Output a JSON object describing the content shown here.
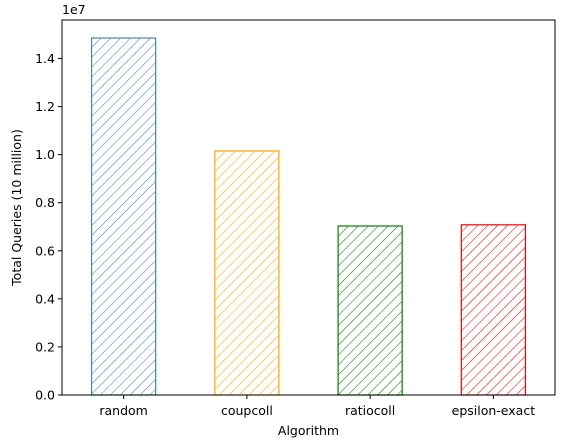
{
  "chart_data": {
    "type": "bar",
    "title": "",
    "xlabel": "Algorithm",
    "ylabel": "Total Queries (10 million)",
    "offset_label": "1e7",
    "categories": [
      "random",
      "coupcoll",
      "ratiocoll",
      "epsilon-exact"
    ],
    "values": [
      14850000,
      10150000,
      7030000,
      7080000
    ],
    "colors": [
      "#4682b4",
      "#ffa500",
      "#008000",
      "#ff0000"
    ],
    "ylim": [
      0,
      15600000
    ],
    "yticks": [
      0,
      2000000,
      4000000,
      6000000,
      8000000,
      10000000,
      12000000,
      14000000
    ],
    "ytick_labels": [
      "0.0",
      "0.2",
      "0.4",
      "0.6",
      "0.8",
      "1.0",
      "1.2",
      "1.4"
    ],
    "hatch": "diagonal",
    "grid": false,
    "legend": "none"
  }
}
